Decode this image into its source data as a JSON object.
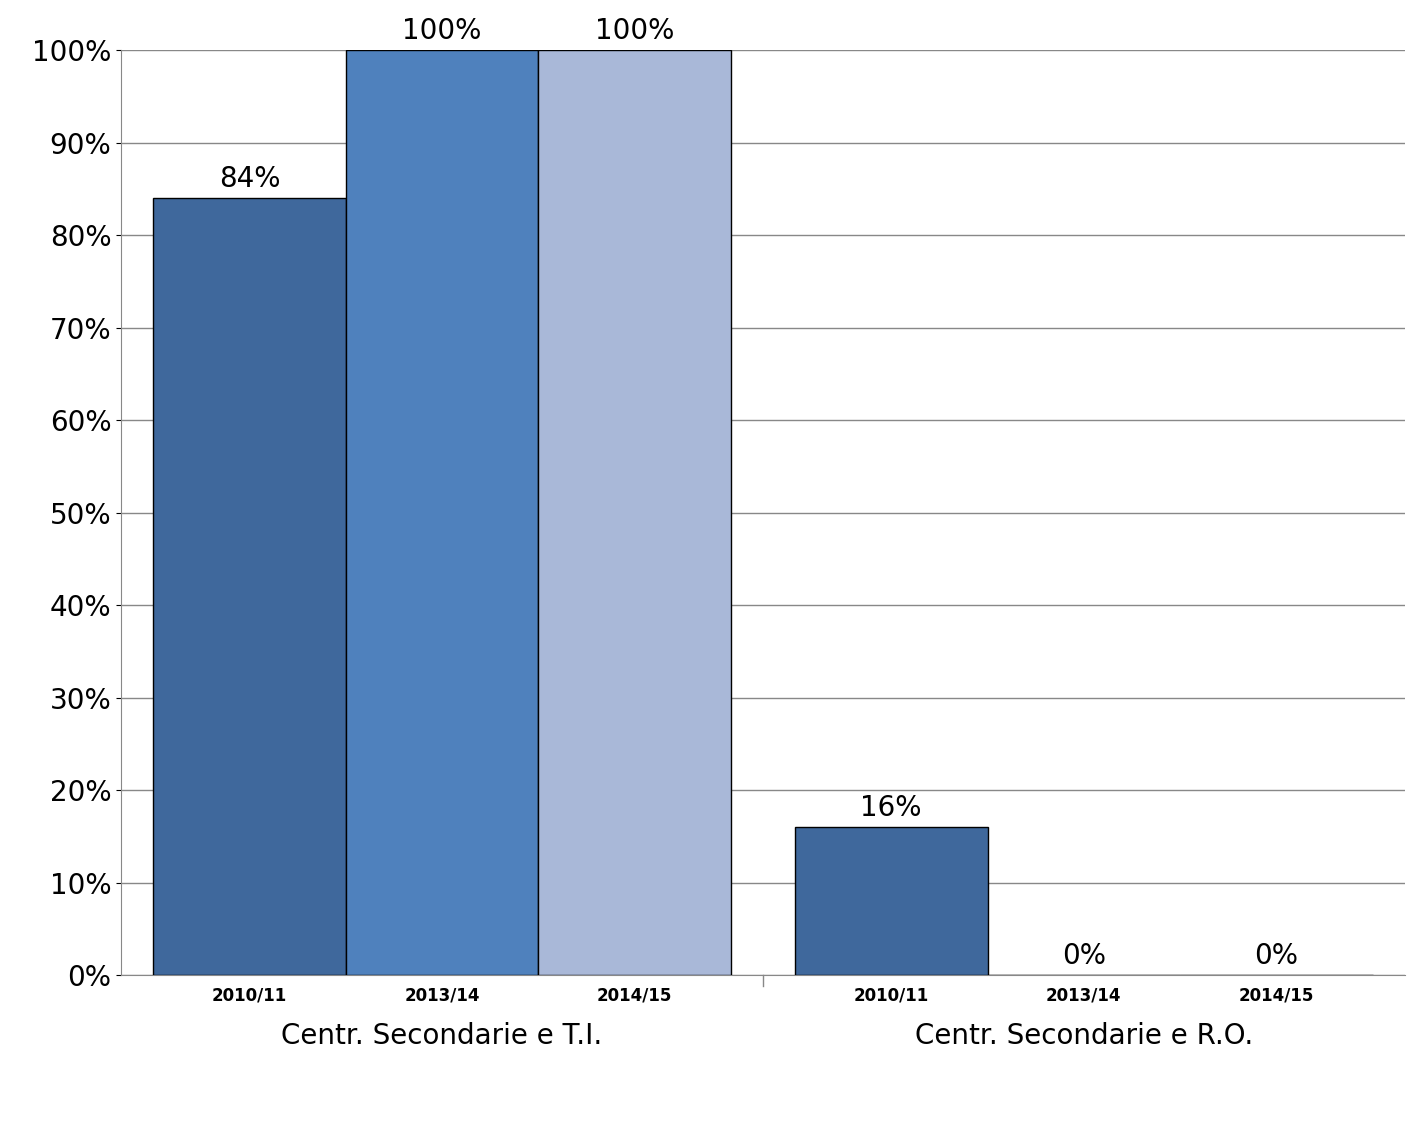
{
  "chart_data": {
    "type": "bar",
    "categories": [
      "Centr. Secondarie e T.I.",
      "Centr. Secondarie e R.O."
    ],
    "series": [
      {
        "name": "2010/11",
        "color": "#3F689C",
        "values": [
          84,
          16
        ],
        "value_labels": [
          "84%",
          "16%"
        ]
      },
      {
        "name": "2013/14",
        "color": "#4F81BD",
        "values": [
          100,
          0
        ],
        "value_labels": [
          "100%",
          "0%"
        ]
      },
      {
        "name": "2014/15",
        "color": "#A9B8D8",
        "values": [
          100,
          0
        ],
        "value_labels": [
          "100%",
          "0%"
        ]
      }
    ],
    "ylim": [
      0,
      100
    ],
    "yticks": [
      {
        "value": 0,
        "label": "0%"
      },
      {
        "value": 10,
        "label": "10%"
      },
      {
        "value": 20,
        "label": "20%"
      },
      {
        "value": 30,
        "label": "30%"
      },
      {
        "value": 40,
        "label": "40%"
      },
      {
        "value": 50,
        "label": "50%"
      },
      {
        "value": 60,
        "label": "60%"
      },
      {
        "value": 70,
        "label": "70%"
      },
      {
        "value": 80,
        "label": "80%"
      },
      {
        "value": 90,
        "label": "90%"
      },
      {
        "value": 100,
        "label": "100%"
      }
    ],
    "grid": true,
    "data_labels": true
  }
}
